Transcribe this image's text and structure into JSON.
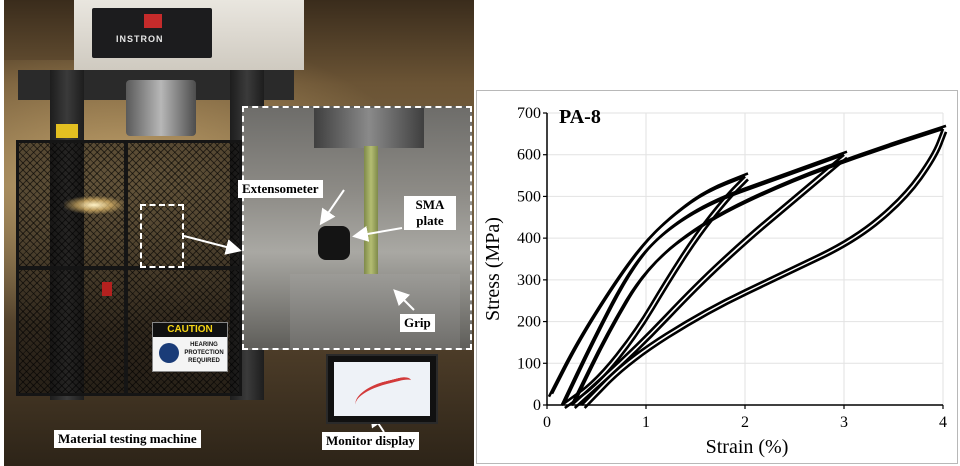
{
  "photo": {
    "brand": "INSTRON",
    "caution_sign": {
      "heading": "CAUTION",
      "body": "HEARING PROTECTION REQUIRED"
    },
    "callouts": {
      "extensometer": "Extensometer",
      "sma_plate": "SMA plate",
      "grip": "Grip",
      "machine": "Material testing machine",
      "monitor": "Monitor display"
    }
  },
  "chart_data": {
    "type": "line",
    "title": "PA-8",
    "xlabel": "Strain (%)",
    "ylabel": "Stress (MPa)",
    "xlim": [
      0,
      4
    ],
    "ylim": [
      0,
      700
    ],
    "xticks": [
      0,
      1,
      2,
      3,
      4
    ],
    "yticks": [
      0,
      100,
      200,
      300,
      400,
      500,
      600,
      700
    ],
    "grid": true,
    "series": [
      {
        "loading": [
          [
            0.02,
            20
          ],
          [
            0.3,
            150
          ],
          [
            0.7,
            300
          ],
          [
            1.0,
            395
          ],
          [
            1.3,
            460
          ],
          [
            1.6,
            510
          ],
          [
            2.0,
            548
          ]
        ],
        "unloading": [
          [
            2.0,
            548
          ],
          [
            1.8,
            500
          ],
          [
            1.5,
            410
          ],
          [
            1.2,
            300
          ],
          [
            0.9,
            180
          ],
          [
            0.5,
            60
          ],
          [
            0.15,
            0
          ]
        ]
      },
      {
        "loading": [
          [
            0.15,
            0
          ],
          [
            0.45,
            150
          ],
          [
            0.8,
            310
          ],
          [
            1.1,
            400
          ],
          [
            1.6,
            480
          ],
          [
            2.3,
            540
          ],
          [
            3.0,
            600
          ]
        ],
        "unloading": [
          [
            3.0,
            600
          ],
          [
            2.8,
            560
          ],
          [
            2.4,
            480
          ],
          [
            2.0,
            400
          ],
          [
            1.5,
            290
          ],
          [
            0.9,
            140
          ],
          [
            0.25,
            0
          ]
        ]
      },
      {
        "loading": [
          [
            0.25,
            0
          ],
          [
            0.6,
            170
          ],
          [
            1.0,
            330
          ],
          [
            1.6,
            440
          ],
          [
            2.4,
            530
          ],
          [
            3.2,
            600
          ],
          [
            4.0,
            662
          ]
        ],
        "unloading": [
          [
            4.0,
            662
          ],
          [
            3.9,
            600
          ],
          [
            3.6,
            500
          ],
          [
            3.1,
            400
          ],
          [
            2.4,
            320
          ],
          [
            1.6,
            230
          ],
          [
            0.8,
            110
          ],
          [
            0.35,
            0
          ]
        ]
      }
    ]
  }
}
